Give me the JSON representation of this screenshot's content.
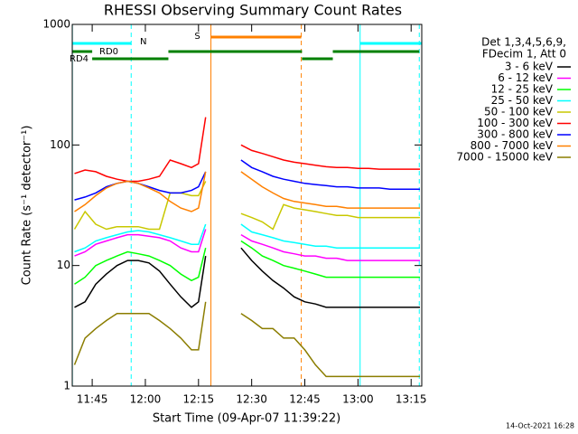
{
  "chart_data": {
    "type": "line",
    "title": "RHESSI Observing Summary Count Rates",
    "xlabel": "Start Time (09-Apr-07 11:39:22)",
    "ylabel": "Count Rate (s⁻¹ detector⁻¹)",
    "timestamp": "14-Oct-2021 16:28",
    "legend_title": [
      "Det 1,3,4,5,6,9,",
      "FDecim 1, Att 0"
    ],
    "ylog": true,
    "ylim": [
      1,
      1000
    ],
    "yticks": [
      1,
      10,
      100,
      1000
    ],
    "xlim": [
      699.37,
      798
    ],
    "xticks": [
      {
        "value": 705,
        "label": "11:45"
      },
      {
        "value": 720,
        "label": "12:00"
      },
      {
        "value": 735,
        "label": "12:15"
      },
      {
        "value": 750,
        "label": "12:30"
      },
      {
        "value": 765,
        "label": "12:45"
      },
      {
        "value": 780,
        "label": "13:00"
      },
      {
        "value": 795,
        "label": "13:15"
      }
    ],
    "x": [
      700,
      703,
      706,
      709,
      712,
      715,
      718,
      721,
      724,
      727,
      730,
      733,
      735,
      737,
      742,
      747,
      750,
      753,
      756,
      759,
      762,
      765,
      768,
      771,
      774,
      777,
      780,
      783,
      786,
      789,
      792,
      795,
      797.5
    ],
    "series": [
      {
        "name": "3 - 6 keV",
        "color": "#000000",
        "values": [
          4.5,
          5,
          7,
          8.5,
          10,
          11,
          11,
          10.5,
          9,
          7,
          5.5,
          4.5,
          5,
          12,
          null,
          14,
          11,
          9,
          7.5,
          6.5,
          5.5,
          5,
          4.8,
          4.5,
          4.5,
          4.5,
          4.5,
          4.5,
          4.5,
          4.5,
          4.5,
          4.5,
          4.5
        ]
      },
      {
        "name": "6 - 12 keV",
        "color": "#ff00ff",
        "values": [
          12,
          13,
          15,
          16,
          17,
          18,
          18,
          17.5,
          17,
          16,
          14,
          13,
          13,
          20,
          null,
          18,
          16,
          15,
          14,
          13,
          12.5,
          12,
          12,
          11.5,
          11.5,
          11,
          11,
          11,
          11,
          11,
          11,
          11,
          11
        ]
      },
      {
        "name": "12 - 25 keV",
        "color": "#00ff00",
        "values": [
          7,
          8,
          10,
          11,
          12,
          13,
          12.5,
          12,
          11,
          10,
          8.5,
          7.5,
          8,
          14,
          null,
          16,
          14,
          12,
          11,
          10,
          9.5,
          9,
          8.5,
          8,
          8,
          8,
          8,
          8,
          8,
          8,
          8,
          8,
          8
        ]
      },
      {
        "name": "25 - 50 keV",
        "color": "#00ffff",
        "values": [
          13,
          14,
          16,
          17,
          18,
          19,
          19.5,
          19,
          18,
          17,
          16,
          15,
          15,
          22,
          null,
          22,
          19,
          18,
          17,
          16,
          15.5,
          15,
          14.5,
          14.5,
          14,
          14,
          14,
          14,
          14,
          14,
          14,
          14,
          14
        ]
      },
      {
        "name": "50 - 100 keV",
        "color": "#c8c800",
        "values": [
          20,
          28,
          22,
          20,
          21,
          21,
          21,
          20,
          20,
          40,
          40,
          38,
          38,
          50,
          null,
          27,
          25,
          23,
          20,
          32,
          30,
          29,
          28,
          27,
          26,
          26,
          25,
          25,
          25,
          25,
          25,
          25,
          25
        ]
      },
      {
        "name": "100 - 300 keV",
        "color": "#ff0000",
        "values": [
          58,
          62,
          60,
          55,
          52,
          50,
          50,
          52,
          55,
          75,
          70,
          65,
          70,
          170,
          null,
          100,
          90,
          85,
          80,
          75,
          72,
          70,
          68,
          66,
          65,
          65,
          64,
          64,
          63,
          63,
          63,
          63,
          63
        ]
      },
      {
        "name": "300 - 800 keV",
        "color": "#0000ff",
        "values": [
          35,
          37,
          40,
          45,
          48,
          50,
          48,
          45,
          42,
          40,
          40,
          42,
          45,
          60,
          null,
          75,
          65,
          60,
          55,
          52,
          50,
          48,
          47,
          46,
          45,
          45,
          44,
          44,
          44,
          43,
          43,
          43,
          43
        ]
      },
      {
        "name": "800 - 7000 keV",
        "color": "#ff8000",
        "values": [
          28,
          32,
          38,
          44,
          48,
          50,
          48,
          44,
          40,
          34,
          30,
          28,
          30,
          60,
          null,
          60,
          52,
          45,
          40,
          36,
          34,
          33,
          32,
          31,
          31,
          30,
          30,
          30,
          30,
          30,
          30,
          30,
          30
        ]
      },
      {
        "name": "7000 - 15000 keV",
        "color": "#8b7d00",
        "values": [
          1.5,
          2.5,
          3,
          3.5,
          4,
          4,
          4,
          4,
          3.5,
          3,
          2.5,
          2,
          2,
          5,
          null,
          4,
          3.5,
          3,
          3,
          2.5,
          2.5,
          2,
          1.5,
          1.2,
          1.2,
          1.2,
          1.2,
          1.2,
          1.2,
          1.2,
          1.2,
          1.2,
          1.2
        ]
      }
    ],
    "markers": [
      {
        "x": 699.4,
        "color": "#00ffff",
        "dashed": false
      },
      {
        "x": 716,
        "color": "#00ffff",
        "dashed": true
      },
      {
        "x": 780.6,
        "color": "#00ffff",
        "dashed": false
      },
      {
        "x": 797.3,
        "color": "#00ffff",
        "dashed": true
      },
      {
        "x": 738.5,
        "color": "#ff8000",
        "dashed": false
      },
      {
        "x": 764,
        "color": "#ff8000",
        "dashed": true
      }
    ],
    "flags": [
      {
        "label": "N",
        "color": "#00ffff",
        "segments": [
          [
            699.4,
            716
          ],
          [
            780.6,
            798
          ]
        ]
      },
      {
        "label": "S",
        "color": "#ff8000",
        "segments": [
          [
            738.5,
            764
          ]
        ]
      },
      {
        "label": "RD0",
        "color": "#008000",
        "segments": [
          [
            699.4,
            705
          ],
          [
            726.5,
            764.2
          ],
          [
            772.9,
            797.3
          ]
        ]
      },
      {
        "label": "RD4",
        "color": "#008000",
        "segments": [
          [
            705,
            726.5
          ],
          [
            764.2,
            772.9
          ]
        ]
      }
    ]
  }
}
